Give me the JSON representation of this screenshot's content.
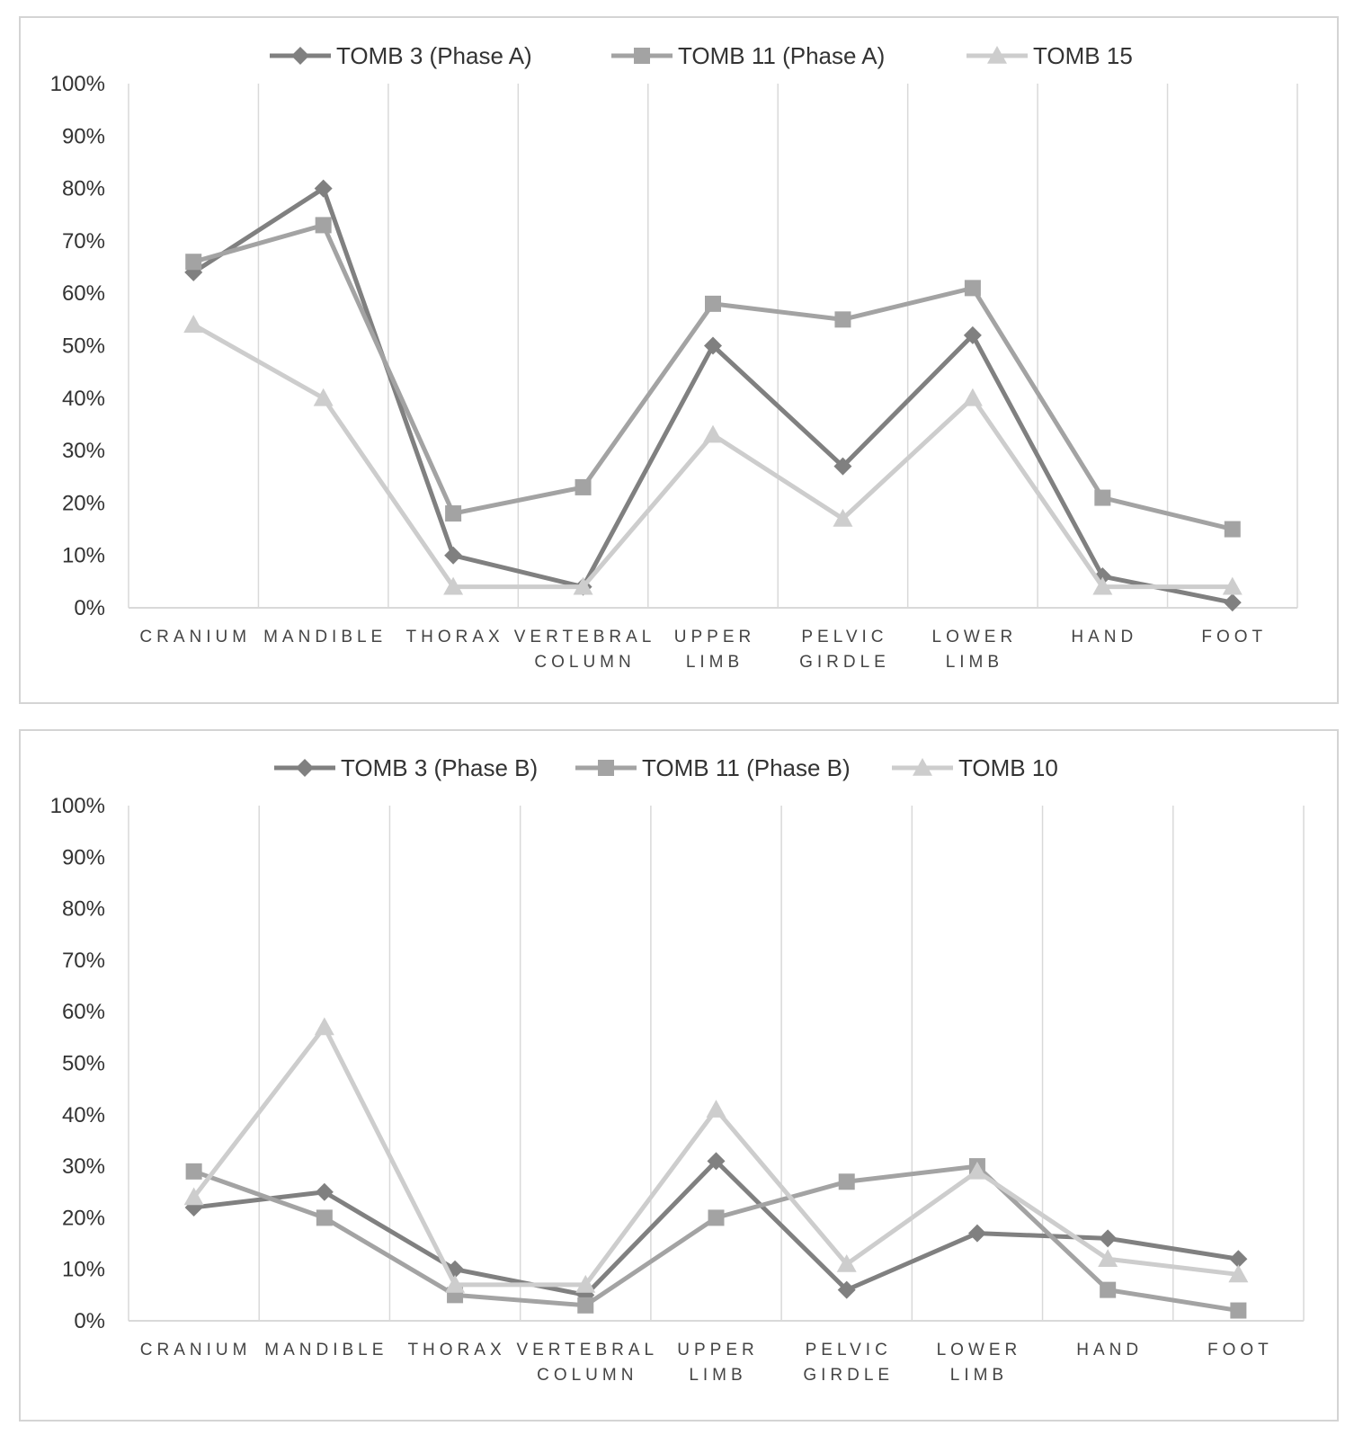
{
  "chart_data": [
    {
      "type": "line",
      "categories": [
        [
          "CRANIUM"
        ],
        [
          "MANDIBLE"
        ],
        [
          "THORAX"
        ],
        [
          "VERTEBRAL",
          "COLUMN"
        ],
        [
          "UPPER",
          "LIMB"
        ],
        [
          "PELVIC",
          "GIRDLE"
        ],
        [
          "LOWER",
          "LIMB"
        ],
        [
          "HAND"
        ],
        [
          "FOOT"
        ]
      ],
      "y_ticks": [
        "0%",
        "10%",
        "20%",
        "30%",
        "40%",
        "50%",
        "60%",
        "70%",
        "80%",
        "90%",
        "100%"
      ],
      "ylim": [
        0,
        100
      ],
      "grid": "vertical",
      "legend": "top-center",
      "series": [
        {
          "name": "TOMB 3 (Phase A)",
          "marker": "diamond",
          "color": "#808080",
          "values": [
            64,
            80,
            10,
            4,
            50,
            27,
            52,
            6,
            1
          ]
        },
        {
          "name": "TOMB 11 (Phase A)",
          "marker": "square",
          "color": "#a3a3a3",
          "values": [
            66,
            73,
            18,
            23,
            58,
            55,
            61,
            21,
            15
          ]
        },
        {
          "name": "TOMB 15",
          "marker": "triangle",
          "color": "#cdcdcd",
          "values": [
            54,
            40,
            4,
            4,
            33,
            17,
            40,
            4,
            4
          ]
        }
      ]
    },
    {
      "type": "line",
      "categories": [
        [
          "CRANIUM"
        ],
        [
          "MANDIBLE"
        ],
        [
          "THORAX"
        ],
        [
          "VERTEBRAL",
          "COLUMN"
        ],
        [
          "UPPER",
          "LIMB"
        ],
        [
          "PELVIC",
          "GIRDLE"
        ],
        [
          "LOWER",
          "LIMB"
        ],
        [
          "HAND"
        ],
        [
          "FOOT"
        ]
      ],
      "y_ticks": [
        "0%",
        "10%",
        "20%",
        "30%",
        "40%",
        "50%",
        "60%",
        "70%",
        "80%",
        "90%",
        "100%"
      ],
      "ylim": [
        0,
        100
      ],
      "grid": "vertical",
      "legend": "top-center",
      "series": [
        {
          "name": "TOMB 3 (Phase B)",
          "marker": "diamond",
          "color": "#808080",
          "values": [
            22,
            25,
            10,
            5,
            31,
            6,
            17,
            16,
            12
          ]
        },
        {
          "name": "TOMB 11 (Phase B)",
          "marker": "square",
          "color": "#a3a3a3",
          "values": [
            29,
            20,
            5,
            3,
            20,
            27,
            30,
            6,
            2
          ]
        },
        {
          "name": "TOMB 10",
          "marker": "triangle",
          "color": "#cdcdcd",
          "values": [
            24,
            57,
            7,
            7,
            41,
            11,
            29,
            12,
            9
          ]
        }
      ]
    }
  ]
}
